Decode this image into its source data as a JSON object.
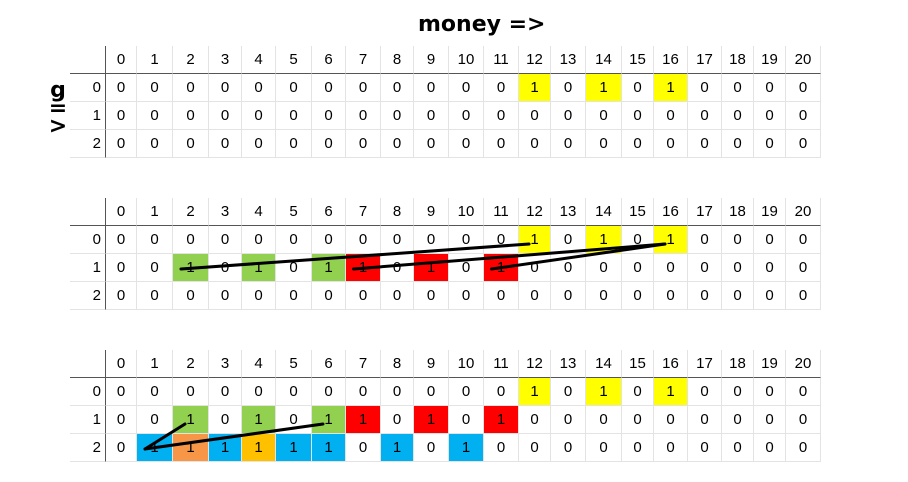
{
  "title": "money =>",
  "side_label": [
    "g",
    "=",
    ">"
  ],
  "colors": {
    "yellow": "#ffff00",
    "green": "#92d050",
    "red": "#ff0000",
    "blue": "#00b0f0",
    "orange": "#f79646",
    "amber": "#ffc000"
  },
  "tables": [
    {
      "name": "table-1",
      "header": [
        "0",
        "1",
        "2",
        "3",
        "4",
        "5",
        "6",
        "7",
        "8",
        "9",
        "10",
        "11",
        "12",
        "13",
        "14",
        "15",
        "16",
        "17",
        "18",
        "19",
        "20"
      ],
      "rows": [
        {
          "g": "0",
          "cells": [
            "0",
            "0",
            "0",
            "0",
            "0",
            "0",
            "0",
            "0",
            "0",
            "0",
            "0",
            "0",
            "1",
            "0",
            "1",
            "0",
            "1",
            "0",
            "0",
            "0",
            "0"
          ]
        },
        {
          "g": "1",
          "cells": [
            "0",
            "0",
            "0",
            "0",
            "0",
            "0",
            "0",
            "0",
            "0",
            "0",
            "0",
            "0",
            "0",
            "0",
            "0",
            "0",
            "0",
            "0",
            "0",
            "0",
            "0"
          ]
        },
        {
          "g": "2",
          "cells": [
            "0",
            "0",
            "0",
            "0",
            "0",
            "0",
            "0",
            "0",
            "0",
            "0",
            "0",
            "0",
            "0",
            "0",
            "0",
            "0",
            "0",
            "0",
            "0",
            "0",
            "0"
          ]
        }
      ],
      "highlights": [
        {
          "row": 0,
          "col": 12,
          "color": "yellow"
        },
        {
          "row": 0,
          "col": 14,
          "color": "yellow"
        },
        {
          "row": 0,
          "col": 16,
          "color": "yellow"
        }
      ]
    },
    {
      "name": "table-2",
      "header": [
        "0",
        "1",
        "2",
        "3",
        "4",
        "5",
        "6",
        "7",
        "8",
        "9",
        "10",
        "11",
        "12",
        "13",
        "14",
        "15",
        "16",
        "17",
        "18",
        "19",
        "20"
      ],
      "rows": [
        {
          "g": "0",
          "cells": [
            "0",
            "0",
            "0",
            "0",
            "0",
            "0",
            "0",
            "0",
            "0",
            "0",
            "0",
            "0",
            "1",
            "0",
            "1",
            "0",
            "1",
            "0",
            "0",
            "0",
            "0"
          ]
        },
        {
          "g": "1",
          "cells": [
            "0",
            "0",
            "1",
            "0",
            "1",
            "0",
            "1",
            "1",
            "0",
            "1",
            "0",
            "1",
            "0",
            "0",
            "0",
            "0",
            "0",
            "0",
            "0",
            "0",
            "0"
          ]
        },
        {
          "g": "2",
          "cells": [
            "0",
            "0",
            "0",
            "0",
            "0",
            "0",
            "0",
            "0",
            "0",
            "0",
            "0",
            "0",
            "0",
            "0",
            "0",
            "0",
            "0",
            "0",
            "0",
            "0",
            "0"
          ]
        }
      ],
      "highlights": [
        {
          "row": 0,
          "col": 12,
          "color": "yellow"
        },
        {
          "row": 0,
          "col": 14,
          "color": "yellow"
        },
        {
          "row": 0,
          "col": 16,
          "color": "yellow"
        },
        {
          "row": 1,
          "col": 2,
          "color": "green"
        },
        {
          "row": 1,
          "col": 4,
          "color": "green"
        },
        {
          "row": 1,
          "col": 6,
          "color": "green"
        },
        {
          "row": 1,
          "col": 7,
          "color": "red"
        },
        {
          "row": 1,
          "col": 9,
          "color": "red"
        },
        {
          "row": 1,
          "col": 11,
          "color": "red"
        }
      ],
      "arrows": [
        {
          "from": [
            1,
            2
          ],
          "to": [
            0,
            12
          ]
        },
        {
          "from": [
            1,
            7
          ],
          "to": [
            0,
            16
          ]
        },
        {
          "from": [
            1,
            11
          ],
          "to": [
            0,
            16
          ]
        }
      ]
    },
    {
      "name": "table-3",
      "header": [
        "0",
        "1",
        "2",
        "3",
        "4",
        "5",
        "6",
        "7",
        "8",
        "9",
        "10",
        "11",
        "12",
        "13",
        "14",
        "15",
        "16",
        "17",
        "18",
        "19",
        "20"
      ],
      "rows": [
        {
          "g": "0",
          "cells": [
            "0",
            "0",
            "0",
            "0",
            "0",
            "0",
            "0",
            "0",
            "0",
            "0",
            "0",
            "0",
            "1",
            "0",
            "1",
            "0",
            "1",
            "0",
            "0",
            "0",
            "0"
          ]
        },
        {
          "g": "1",
          "cells": [
            "0",
            "0",
            "1",
            "0",
            "1",
            "0",
            "1",
            "1",
            "0",
            "1",
            "0",
            "1",
            "0",
            "0",
            "0",
            "0",
            "0",
            "0",
            "0",
            "0",
            "0"
          ]
        },
        {
          "g": "2",
          "cells": [
            "0",
            "1",
            "1",
            "1",
            "1",
            "1",
            "1",
            "0",
            "1",
            "0",
            "1",
            "0",
            "0",
            "0",
            "0",
            "0",
            "0",
            "0",
            "0",
            "0",
            "0"
          ]
        }
      ],
      "highlights": [
        {
          "row": 0,
          "col": 12,
          "color": "yellow"
        },
        {
          "row": 0,
          "col": 14,
          "color": "yellow"
        },
        {
          "row": 0,
          "col": 16,
          "color": "yellow"
        },
        {
          "row": 1,
          "col": 2,
          "color": "green"
        },
        {
          "row": 1,
          "col": 4,
          "color": "green"
        },
        {
          "row": 1,
          "col": 6,
          "color": "green"
        },
        {
          "row": 1,
          "col": 7,
          "color": "red"
        },
        {
          "row": 1,
          "col": 9,
          "color": "red"
        },
        {
          "row": 1,
          "col": 11,
          "color": "red"
        },
        {
          "row": 2,
          "col": 1,
          "color": "blue"
        },
        {
          "row": 2,
          "col": 2,
          "color": "orange"
        },
        {
          "row": 2,
          "col": 3,
          "color": "blue"
        },
        {
          "row": 2,
          "col": 4,
          "color": "amber"
        },
        {
          "row": 2,
          "col": 5,
          "color": "blue"
        },
        {
          "row": 2,
          "col": 6,
          "color": "blue"
        },
        {
          "row": 2,
          "col": 8,
          "color": "blue"
        },
        {
          "row": 2,
          "col": 10,
          "color": "blue"
        }
      ],
      "arrows": [
        {
          "from": [
            2,
            1
          ],
          "to": [
            1,
            2
          ]
        },
        {
          "from": [
            2,
            1
          ],
          "to": [
            1,
            6
          ]
        }
      ]
    }
  ]
}
